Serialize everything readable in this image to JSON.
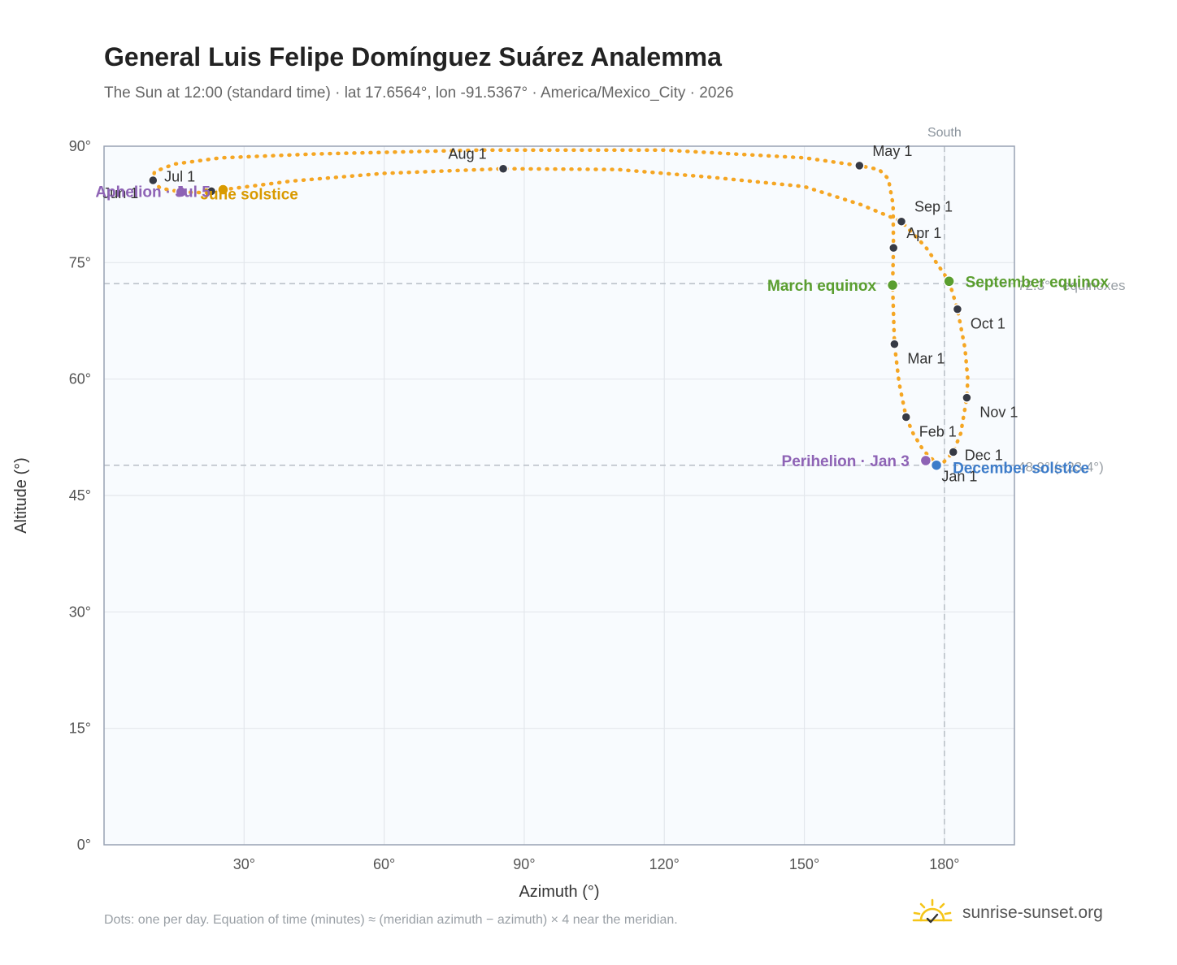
{
  "title": "General Luis Felipe Domínguez Suárez Analemma",
  "subtitle": "The Sun at 12:00 (standard time) · lat 17.6564°, lon -91.5367° · America/Mexico_City · 2026",
  "footnote": "Dots: one per day. Equation of time (minutes) ≈ (meridian azimuth − azimuth) × 4 near the meridian.",
  "brand": {
    "name": "sunrise-sunset.org",
    "icon": "sun-logo-icon"
  },
  "colors": {
    "curve": "#f5a623",
    "month_dot": "#363a45",
    "equinox": "#5a9e2f",
    "june_solstice": "#d99a00",
    "december_solstice": "#3d7cc9",
    "apsis": "#8e63b5",
    "plot_bg": "#f8fbfe",
    "grid": "#e3e7ec",
    "axis": "#98a2b3",
    "ref_line": "#b7bec6"
  },
  "chart_data": {
    "type": "scatter",
    "xlabel": "Azimuth (°)",
    "ylabel": "Altitude (°)",
    "xlim": [
      0,
      195
    ],
    "ylim": [
      0,
      90
    ],
    "x_ticks": [
      30,
      60,
      90,
      120,
      150,
      180
    ],
    "x_tick_labels": [
      "30°",
      "60°",
      "90°",
      "120°",
      "150°",
      "180°"
    ],
    "y_ticks": [
      0,
      15,
      30,
      45,
      60,
      75,
      90
    ],
    "y_tick_labels": [
      "0°",
      "15°",
      "30°",
      "45°",
      "60°",
      "75°",
      "90°"
    ],
    "grid": true,
    "meridian": {
      "azimuth": 180,
      "label": "South"
    },
    "reference_lines": [
      {
        "altitude": 72.3,
        "label": "72.3° · equinoxes"
      },
      {
        "altitude": 48.9,
        "label": "48.9° (−23.4°)"
      }
    ],
    "month_markers": [
      {
        "label": "Jan 1",
        "az": 178.7,
        "alt": 48.9
      },
      {
        "label": "Feb 1",
        "az": 171.8,
        "alt": 55.1
      },
      {
        "label": "Mar 1",
        "az": 169.3,
        "alt": 64.5
      },
      {
        "label": "Apr 1",
        "az": 169.1,
        "alt": 76.9
      },
      {
        "label": "May 1",
        "az": 161.8,
        "alt": 87.5
      },
      {
        "label": "Jun 1",
        "az": 10.5,
        "alt": 85.6
      },
      {
        "label": "Jul 1",
        "az": 23.0,
        "alt": 84.2
      },
      {
        "label": "Aug 1",
        "az": 85.5,
        "alt": 87.1
      },
      {
        "label": "Sep 1",
        "az": 170.8,
        "alt": 80.3
      },
      {
        "label": "Oct 1",
        "az": 182.8,
        "alt": 69.0
      },
      {
        "label": "Nov 1",
        "az": 184.8,
        "alt": 57.6
      },
      {
        "label": "Dec 1",
        "az": 181.9,
        "alt": 50.6
      }
    ],
    "events": [
      {
        "label": "March equinox",
        "az": 168.9,
        "alt": 72.1,
        "kind": "equinox"
      },
      {
        "label": "September equinox",
        "az": 181.0,
        "alt": 72.6,
        "kind": "equinox"
      },
      {
        "label": "June solstice",
        "az": 25.5,
        "alt": 84.4,
        "kind": "june_solstice"
      },
      {
        "label": "December solstice",
        "az": 178.3,
        "alt": 48.9,
        "kind": "december_solstice"
      },
      {
        "label": "Perihelion · Jan 3",
        "az": 176.0,
        "alt": 49.5,
        "kind": "apsis"
      },
      {
        "label": "Aphelion · Jul 5",
        "az": 16.5,
        "alt": 84.1,
        "kind": "apsis"
      }
    ],
    "analemma_track": [
      [
        178.7,
        48.9
      ],
      [
        175.5,
        50.8
      ],
      [
        173.3,
        53.0
      ],
      [
        171.8,
        55.1
      ],
      [
        170.3,
        59.5
      ],
      [
        169.3,
        64.5
      ],
      [
        168.9,
        72.1
      ],
      [
        169.1,
        76.9
      ],
      [
        169.0,
        82.5
      ],
      [
        168.0,
        85.8
      ],
      [
        166.0,
        87.0
      ],
      [
        161.8,
        87.5
      ],
      [
        150.0,
        88.5
      ],
      [
        120.0,
        89.5
      ],
      [
        80.0,
        89.5
      ],
      [
        45.0,
        89.0
      ],
      [
        25.0,
        88.5
      ],
      [
        15.0,
        87.7
      ],
      [
        10.8,
        86.7
      ],
      [
        10.5,
        85.6
      ],
      [
        12.0,
        84.6
      ],
      [
        16.5,
        84.1
      ],
      [
        22.0,
        84.0
      ],
      [
        25.5,
        84.4
      ],
      [
        40.0,
        85.5
      ],
      [
        60.0,
        86.5
      ],
      [
        85.5,
        87.1
      ],
      [
        110.0,
        87.0
      ],
      [
        130.0,
        86.0
      ],
      [
        150.0,
        84.8
      ],
      [
        162.0,
        82.5
      ],
      [
        170.8,
        80.3
      ],
      [
        176.0,
        77.0
      ],
      [
        181.0,
        72.6
      ],
      [
        182.8,
        69.0
      ],
      [
        184.4,
        64.0
      ],
      [
        185.0,
        60.0
      ],
      [
        184.8,
        57.6
      ],
      [
        183.5,
        53.0
      ],
      [
        181.9,
        50.6
      ],
      [
        179.3,
        48.95
      ],
      [
        178.7,
        48.9
      ]
    ]
  }
}
